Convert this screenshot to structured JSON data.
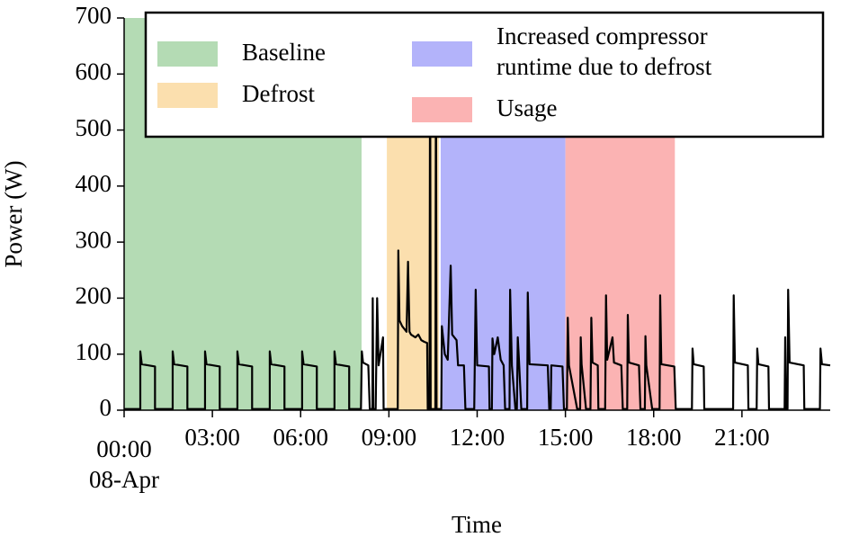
{
  "chart_data": {
    "type": "line",
    "xlabel": "Time",
    "ylabel": "Power (W)",
    "xlim": [
      0,
      24
    ],
    "ylim": [
      0,
      700
    ],
    "xticks": [
      {
        "value": 0,
        "label": "00:00\n08-Apr"
      },
      {
        "value": 3,
        "label": "03:00"
      },
      {
        "value": 6,
        "label": "06:00"
      },
      {
        "value": 9,
        "label": "09:00"
      },
      {
        "value": 12,
        "label": "12:00"
      },
      {
        "value": 15,
        "label": "15:00"
      },
      {
        "value": 18,
        "label": "18:00"
      },
      {
        "value": 21,
        "label": "21:00"
      }
    ],
    "yticks": [
      0,
      100,
      200,
      300,
      400,
      500,
      600,
      700
    ],
    "regions": [
      {
        "name": "Baseline",
        "color": "#b4dbb4",
        "start": 0,
        "end": 8.07
      },
      {
        "name": "Defrost",
        "color": "#fbdfae",
        "start": 8.93,
        "end": 10.7
      },
      {
        "name": "Increased compressor\nruntime due to defrost",
        "color": "#b3b3fa",
        "start": 10.76,
        "end": 15
      },
      {
        "name": "Usage",
        "color": "#fbb3b3",
        "start": 15,
        "end": 18.72
      }
    ],
    "series": [
      {
        "color": "#000000",
        "x": [
          0,
          0.55,
          0.55,
          0.6,
          1.05,
          1.05,
          1.65,
          1.65,
          1.7,
          2.15,
          2.15,
          2.75,
          2.75,
          2.8,
          3.25,
          3.25,
          3.85,
          3.85,
          3.9,
          4.35,
          4.35,
          4.95,
          4.95,
          5.0,
          5.45,
          5.45,
          6.05,
          6.05,
          6.1,
          6.55,
          6.55,
          7.15,
          7.15,
          7.2,
          7.65,
          7.65,
          8.05,
          8.08,
          8.12,
          8.3,
          8.35,
          8.44,
          8.45,
          8.47,
          8.55,
          8.6,
          8.65,
          8.8,
          8.82,
          9.3,
          9.32,
          9.36,
          9.45,
          9.6,
          9.65,
          9.7,
          9.75,
          9.9,
          10.0,
          10.1,
          10.2,
          10.3,
          10.32,
          10.38,
          10.4,
          10.42,
          10.58,
          10.6,
          10.62,
          10.78,
          10.8,
          10.9,
          11.0,
          11.1,
          11.15,
          11.3,
          11.35,
          11.55,
          11.6,
          11.9,
          11.95,
          12.0,
          12.4,
          12.42,
          12.5,
          12.52,
          12.58,
          12.7,
          12.8,
          12.9,
          12.95,
          13.1,
          13.12,
          13.18,
          13.3,
          13.35,
          13.38,
          13.42,
          13.5,
          13.7,
          13.72,
          13.78,
          14.4,
          14.45,
          14.5,
          14.52,
          14.9,
          14.95,
          15.05,
          15.08,
          15.12,
          15.4,
          15.5,
          15.52,
          15.55,
          15.7,
          15.85,
          15.88,
          15.92,
          16.1,
          16.12,
          16.35,
          16.38,
          16.42,
          16.6,
          16.65,
          16.9,
          16.95,
          17.1,
          17.12,
          17.16,
          17.5,
          17.55,
          17.7,
          17.72,
          17.75,
          17.95,
          18.2,
          18.22,
          18.26,
          18.7,
          18.75,
          19.3,
          19.32,
          19.36,
          19.7,
          19.72,
          20.7,
          20.72,
          20.76,
          21.2,
          21.22,
          21.5,
          21.52,
          21.56,
          21.9,
          21.92,
          22.45,
          22.47,
          22.5,
          22.55,
          22.57,
          22.62,
          23.1,
          23.12,
          23.65,
          23.67,
          23.72,
          24
        ],
        "values": [
          2,
          2,
          105,
          82,
          78,
          2,
          2,
          105,
          82,
          78,
          2,
          2,
          105,
          82,
          78,
          2,
          2,
          105,
          82,
          78,
          2,
          2,
          105,
          82,
          78,
          2,
          2,
          105,
          82,
          78,
          2,
          2,
          105,
          82,
          78,
          2,
          2,
          105,
          85,
          80,
          2,
          2,
          200,
          2,
          2,
          200,
          80,
          130,
          2,
          2,
          285,
          160,
          150,
          140,
          265,
          140,
          135,
          130,
          135,
          125,
          122,
          120,
          2,
          2,
          700,
          2,
          2,
          700,
          2,
          2,
          150,
          100,
          90,
          258,
          135,
          125,
          80,
          80,
          2,
          2,
          215,
          80,
          78,
          2,
          2,
          128,
          100,
          130,
          90,
          80,
          2,
          2,
          215,
          80,
          2,
          2,
          130,
          90,
          2,
          2,
          210,
          82,
          80,
          2,
          2,
          80,
          78,
          2,
          2,
          165,
          80,
          2,
          2,
          130,
          82,
          2,
          2,
          165,
          85,
          80,
          2,
          2,
          205,
          90,
          130,
          85,
          80,
          2,
          2,
          170,
          85,
          80,
          2,
          2,
          132,
          80,
          2,
          2,
          205,
          82,
          78,
          2,
          2,
          110,
          82,
          78,
          2,
          2,
          205,
          85,
          80,
          2,
          2,
          110,
          82,
          78,
          2,
          2,
          130,
          2,
          2,
          215,
          85,
          80,
          2,
          2,
          110,
          82,
          80
        ]
      }
    ]
  }
}
